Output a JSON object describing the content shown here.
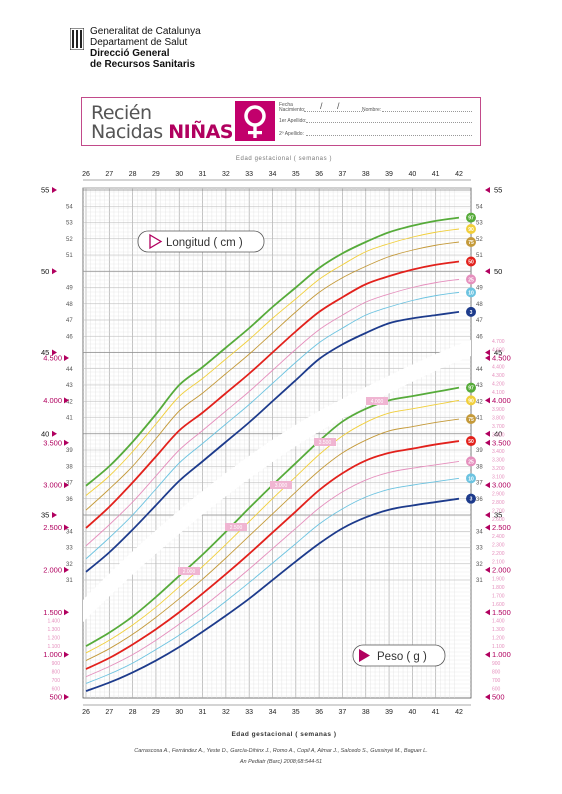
{
  "header": {
    "org_line1": "Generalitat de Catalunya",
    "org_line2": "Departament de Salut",
    "org_line3": "Direcció General",
    "org_line4": "de Recursos Sanitaris"
  },
  "banner": {
    "title_line1": "Recién",
    "title_line2_a": "Nacidas ",
    "title_line2_b": "NIÑAS",
    "field_date": "Fecha Nacimiento:",
    "field_name": "Nombre:",
    "field_surname1": "1er Apellido:",
    "field_surname2": "2º Apellido:",
    "date_sep": "/"
  },
  "chart_data": [
    {
      "type": "line",
      "title": "Longitud ( cm )",
      "xlabel": "Edad gestacional ( semanas )",
      "x": [
        26,
        27,
        28,
        29,
        30,
        31,
        32,
        33,
        34,
        35,
        36,
        37,
        38,
        39,
        40,
        41,
        42
      ],
      "ylim": [
        31,
        55
      ],
      "y_ticks": [
        31,
        32,
        33,
        34,
        35,
        36,
        37,
        38,
        39,
        40,
        41,
        42,
        43,
        44,
        45,
        46,
        47,
        48,
        49,
        50,
        51,
        52,
        53,
        54,
        55
      ],
      "series": [
        {
          "name": "97",
          "color": "#56ab3a",
          "values": [
            36.8,
            38.0,
            39.5,
            41.2,
            43.0,
            44.1,
            45.3,
            46.5,
            47.8,
            49.0,
            50.2,
            51.1,
            51.8,
            52.4,
            52.8,
            53.1,
            53.3
          ]
        },
        {
          "name": "90",
          "color": "#f1cf3b",
          "values": [
            36.2,
            37.4,
            38.9,
            40.6,
            42.3,
            43.4,
            44.6,
            45.8,
            47.1,
            48.3,
            49.5,
            50.4,
            51.2,
            51.7,
            52.1,
            52.4,
            52.6
          ]
        },
        {
          "name": "75",
          "color": "#c49a3a",
          "values": [
            35.3,
            36.6,
            38.0,
            39.7,
            41.4,
            42.5,
            43.7,
            44.9,
            46.2,
            47.5,
            48.7,
            49.6,
            50.3,
            50.9,
            51.3,
            51.6,
            51.8
          ]
        },
        {
          "name": "50",
          "color": "#e2211c",
          "values": [
            34.2,
            35.5,
            37.0,
            38.6,
            40.2,
            41.3,
            42.5,
            43.7,
            45.0,
            46.3,
            47.5,
            48.4,
            49.2,
            49.7,
            50.1,
            50.4,
            50.6
          ]
        },
        {
          "name": "25",
          "color": "#e58fbd",
          "values": [
            33.1,
            34.4,
            35.8,
            37.4,
            39.0,
            40.2,
            41.4,
            42.6,
            43.9,
            45.2,
            46.4,
            47.3,
            48.1,
            48.6,
            49.0,
            49.3,
            49.5
          ]
        },
        {
          "name": "10",
          "color": "#6cc3e0",
          "values": [
            32.3,
            33.6,
            35.0,
            36.6,
            38.2,
            39.4,
            40.6,
            41.8,
            43.1,
            44.4,
            45.6,
            46.5,
            47.3,
            47.8,
            48.2,
            48.5,
            48.7
          ]
        },
        {
          "name": "3",
          "color": "#1d3b8c",
          "values": [
            31.5,
            32.7,
            34.1,
            35.6,
            37.1,
            38.3,
            39.5,
            40.7,
            42.0,
            43.3,
            44.6,
            45.5,
            46.2,
            46.8,
            47.1,
            47.3,
            47.5
          ]
        }
      ]
    },
    {
      "type": "line",
      "title": "Peso ( g )",
      "xlabel": "Edad gestacional ( semanas )",
      "x": [
        26,
        27,
        28,
        29,
        30,
        31,
        32,
        33,
        34,
        35,
        36,
        37,
        38,
        39,
        40,
        41,
        42
      ],
      "ylim": [
        500,
        4500
      ],
      "series": [
        {
          "name": "97",
          "color": "#56ab3a",
          "values": [
            1100,
            1260,
            1450,
            1680,
            1930,
            2180,
            2450,
            2730,
            3000,
            3260,
            3520,
            3750,
            3900,
            4000,
            4050,
            4100,
            4150
          ]
        },
        {
          "name": "90",
          "color": "#f1cf3b",
          "values": [
            1020,
            1170,
            1350,
            1560,
            1800,
            2040,
            2300,
            2570,
            2840,
            3100,
            3360,
            3580,
            3740,
            3850,
            3900,
            3950,
            4000
          ]
        },
        {
          "name": "75",
          "color": "#c49a3a",
          "values": [
            930,
            1070,
            1240,
            1440,
            1660,
            1890,
            2140,
            2400,
            2660,
            2920,
            3170,
            3380,
            3530,
            3640,
            3690,
            3740,
            3780
          ]
        },
        {
          "name": "50",
          "color": "#e2211c",
          "values": [
            830,
            960,
            1120,
            1300,
            1500,
            1720,
            1950,
            2190,
            2440,
            2690,
            2940,
            3140,
            3290,
            3380,
            3430,
            3480,
            3520
          ]
        },
        {
          "name": "25",
          "color": "#e58fbd",
          "values": [
            740,
            860,
            1000,
            1170,
            1360,
            1560,
            1780,
            2010,
            2250,
            2490,
            2730,
            2920,
            3060,
            3150,
            3200,
            3240,
            3280
          ]
        },
        {
          "name": "10",
          "color": "#6cc3e0",
          "values": [
            660,
            770,
            900,
            1060,
            1230,
            1420,
            1630,
            1850,
            2080,
            2310,
            2540,
            2720,
            2860,
            2950,
            3000,
            3040,
            3080
          ]
        },
        {
          "name": "3",
          "color": "#1d3b8c",
          "values": [
            570,
            670,
            790,
            930,
            1090,
            1270,
            1460,
            1660,
            1880,
            2100,
            2310,
            2490,
            2620,
            2710,
            2760,
            2800,
            2840
          ]
        }
      ]
    }
  ],
  "axes": {
    "x_label_top": "Edad gestacional ( semanas )",
    "x_label_bottom": "Edad gestacional ( semanas )",
    "length_major_ticks": [
      "35",
      "40",
      "45",
      "50",
      "55"
    ],
    "weight_major_ticks": [
      "500",
      "1.000",
      "1.500",
      "2.000",
      "2.500",
      "3.000",
      "3.500",
      "4.000",
      "4.500"
    ],
    "weight_minor_ticks": [
      "600",
      "700",
      "800",
      "900",
      "1.100",
      "1.200",
      "1.300",
      "1.400",
      "1.600",
      "1.700",
      "1.800",
      "1.900",
      "2.100",
      "2.200",
      "2.300",
      "2.400",
      "2.600",
      "2.700",
      "2.800",
      "2.900",
      "3.100",
      "3.200",
      "3.300",
      "3.400",
      "3.600",
      "3.700",
      "3.800",
      "3.900",
      "4.100",
      "4.200",
      "4.300",
      "4.400",
      "4.600",
      "4.700"
    ],
    "diag_labels": [
      "2.000",
      "2.500",
      "3.000",
      "3.500",
      "4.000"
    ]
  },
  "footer": {
    "citation1": "Carrascosa A., Ferrández A., Yeste D., García-Dihinx J., Romo A., Copil A, Almar J., Salcedo S., Gussinyé M., Baguer L.",
    "citation2": "An Pediatr (Barc) 2008;68:544-51"
  },
  "colors": {
    "brand_magenta": "#c2006c",
    "grid": "#d7d7d7",
    "tick_red": "#b1005f"
  }
}
